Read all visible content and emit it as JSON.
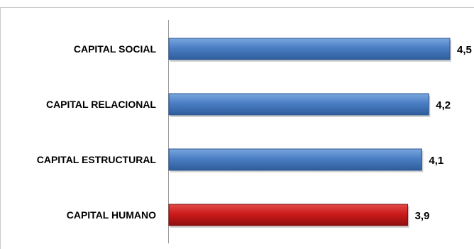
{
  "chart_data": {
    "type": "bar",
    "orientation": "horizontal",
    "categories": [
      "CAPITAL SOCIAL",
      "CAPITAL RELACIONAL",
      "CAPITAL ESTRUCTURAL",
      "CAPITAL HUMANO"
    ],
    "values": [
      4.5,
      4.2,
      4.1,
      3.9
    ],
    "value_labels": [
      "4,5",
      "4,2",
      "4,1",
      "3,9"
    ],
    "bar_colors": [
      "#4a7ec4",
      "#4a7ec4",
      "#4a7ec4",
      "#cc1a1a"
    ],
    "xlim": [
      0.5,
      4.5
    ],
    "grid": false,
    "legend": "none"
  }
}
